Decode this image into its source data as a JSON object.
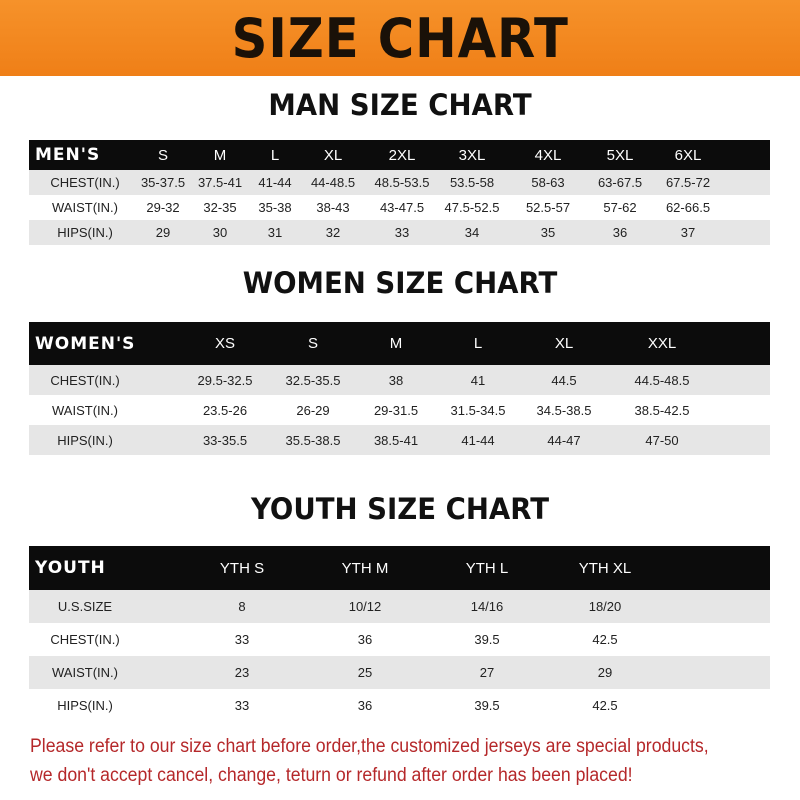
{
  "banner": "SIZE CHART",
  "men": {
    "title": "MAN SIZE CHART",
    "header": "MEN'S",
    "sizes": [
      "S",
      "M",
      "L",
      "XL",
      "2XL",
      "3XL",
      "4XL",
      "5XL",
      "6XL"
    ],
    "rows": [
      {
        "label": "CHEST(IN.)",
        "values": [
          "35-37.5",
          "37.5-41",
          "41-44",
          "44-48.5",
          "48.5-53.5",
          "53.5-58",
          "58-63",
          "63-67.5",
          "67.5-72"
        ]
      },
      {
        "label": "WAIST(IN.)",
        "values": [
          "29-32",
          "32-35",
          "35-38",
          "38-43",
          "43-47.5",
          "47.5-52.5",
          "52.5-57",
          "57-62",
          "62-66.5"
        ]
      },
      {
        "label": "HIPS(IN.)",
        "values": [
          "29",
          "30",
          "31",
          "32",
          "33",
          "34",
          "35",
          "36",
          "37"
        ]
      }
    ]
  },
  "women": {
    "title": "WOMEN SIZE CHART",
    "header": "WOMEN'S",
    "sizes": [
      "XS",
      "S",
      "M",
      "L",
      "XL",
      "XXL"
    ],
    "rows": [
      {
        "label": "CHEST(IN.)",
        "values": [
          "29.5-32.5",
          "32.5-35.5",
          "38",
          "41",
          "44.5",
          "44.5-48.5"
        ]
      },
      {
        "label": "WAIST(IN.)",
        "values": [
          "23.5-26",
          "26-29",
          "29-31.5",
          "31.5-34.5",
          "34.5-38.5",
          "38.5-42.5"
        ]
      },
      {
        "label": "HIPS(IN.)",
        "values": [
          "33-35.5",
          "35.5-38.5",
          "38.5-41",
          "41-44",
          "44-47",
          "47-50"
        ]
      }
    ]
  },
  "youth": {
    "title": "YOUTH SIZE CHART",
    "header": "YOUTH",
    "sizes": [
      "YTH S",
      "YTH M",
      "YTH L",
      "YTH XL"
    ],
    "rows": [
      {
        "label": "U.S.SIZE",
        "values": [
          "8",
          "10/12",
          "14/16",
          "18/20"
        ]
      },
      {
        "label": "CHEST(IN.)",
        "values": [
          "33",
          "36",
          "39.5",
          "42.5"
        ]
      },
      {
        "label": "WAIST(IN.)",
        "values": [
          "23",
          "25",
          "27",
          "29"
        ]
      },
      {
        "label": "HIPS(IN.)",
        "values": [
          "33",
          "36",
          "39.5",
          "42.5"
        ]
      }
    ]
  },
  "footer": [
    "Please refer to our size chart before order,the customized jerseys are special products,",
    "we don't accept cancel, change, teturn or refund after order has been placed!"
  ]
}
